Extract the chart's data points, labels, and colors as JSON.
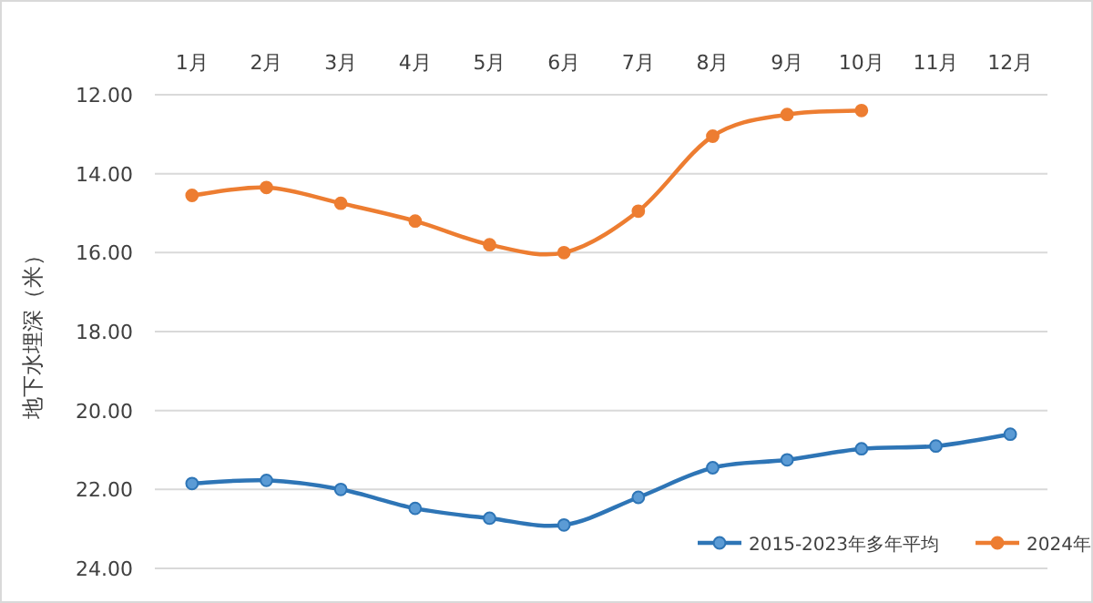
{
  "chart_data": {
    "type": "line",
    "ylabel": "地下水埋深（米）",
    "categories": [
      "1月",
      "2月",
      "3月",
      "4月",
      "5月",
      "6月",
      "7月",
      "8月",
      "9月",
      "10月",
      "11月",
      "12月"
    ],
    "series": [
      {
        "name": "2015-2023年多年平均",
        "color": "#2e75b6",
        "values": [
          21.85,
          21.77,
          22.0,
          22.48,
          22.73,
          22.9,
          22.2,
          21.45,
          21.25,
          20.97,
          20.9,
          20.6
        ]
      },
      {
        "name": "2024年",
        "color": "#ed7d31",
        "values": [
          14.55,
          14.35,
          14.75,
          15.2,
          15.8,
          16.0,
          14.95,
          13.05,
          12.5,
          12.4,
          null,
          null
        ]
      }
    ],
    "ylim": [
      24,
      12
    ],
    "yticks": [
      {
        "value": 12,
        "label": "12.00"
      },
      {
        "value": 14,
        "label": "14.00"
      },
      {
        "value": 16,
        "label": "16.00"
      },
      {
        "value": 18,
        "label": "18.00"
      },
      {
        "value": 20,
        "label": "20.00"
      },
      {
        "value": 22,
        "label": "22.00"
      },
      {
        "value": 24,
        "label": "24.00"
      }
    ],
    "grid": "y",
    "legend": "bottom right",
    "marker": "circle",
    "line_style": "solid"
  }
}
